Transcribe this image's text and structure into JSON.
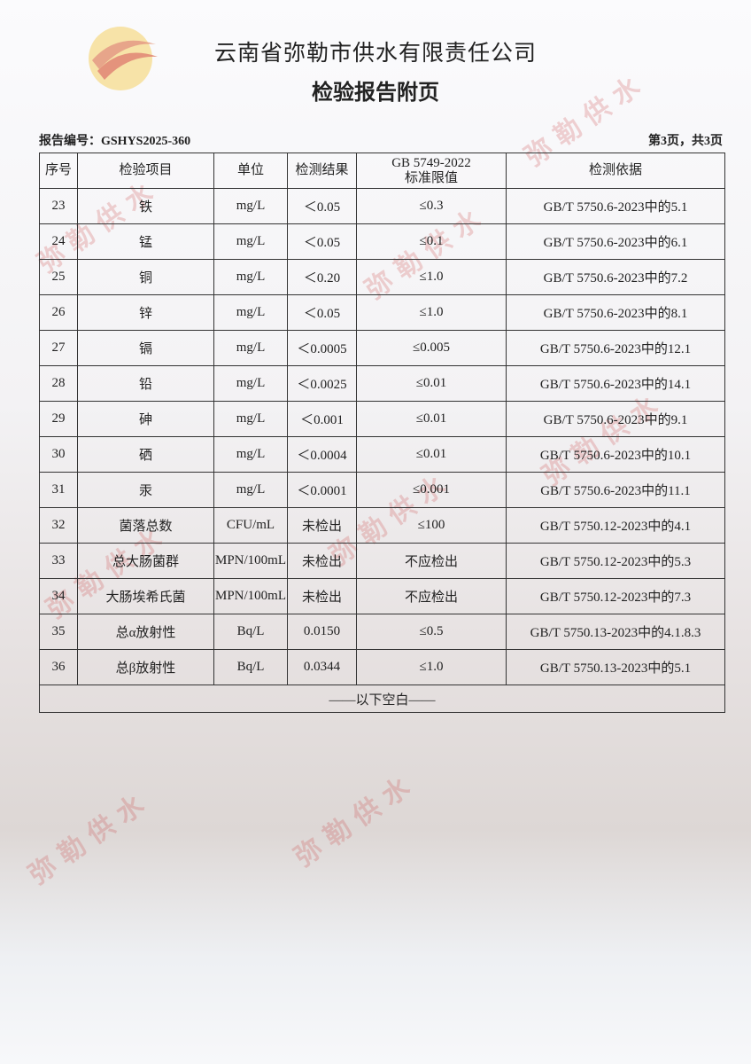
{
  "header": {
    "title": "云南省弥勒市供水有限责任公司",
    "subtitle": "检验报告附页",
    "report_no": "报告编号：GSHYS2025-360",
    "page": "第3页，共3页"
  },
  "watermark": "弥勒供水",
  "table": {
    "columns": [
      "序号",
      "检验项目",
      "单位",
      "检测结果",
      [
        "GB 5749-2022",
        "标准限值"
      ],
      "检测依据"
    ],
    "rows": [
      [
        "23",
        "铁",
        "mg/L",
        "＜0.05",
        "≤0.3",
        "GB/T 5750.6-2023中的5.1"
      ],
      [
        "24",
        "锰",
        "mg/L",
        "＜0.05",
        "≤0.1",
        "GB/T 5750.6-2023中的6.1"
      ],
      [
        "25",
        "铜",
        "mg/L",
        "＜0.20",
        "≤1.0",
        "GB/T 5750.6-2023中的7.2"
      ],
      [
        "26",
        "锌",
        "mg/L",
        "＜0.05",
        "≤1.0",
        "GB/T 5750.6-2023中的8.1"
      ],
      [
        "27",
        "镉",
        "mg/L",
        "＜0.0005",
        "≤0.005",
        "GB/T 5750.6-2023中的12.1"
      ],
      [
        "28",
        "铅",
        "mg/L",
        "＜0.0025",
        "≤0.01",
        "GB/T 5750.6-2023中的14.1"
      ],
      [
        "29",
        "砷",
        "mg/L",
        "＜0.001",
        "≤0.01",
        "GB/T 5750.6-2023中的9.1"
      ],
      [
        "30",
        "硒",
        "mg/L",
        "＜0.0004",
        "≤0.01",
        "GB/T 5750.6-2023中的10.1"
      ],
      [
        "31",
        "汞",
        "mg/L",
        "＜0.0001",
        "≤0.001",
        "GB/T 5750.6-2023中的11.1"
      ],
      [
        "32",
        "菌落总数",
        "CFU/mL",
        "未检出",
        "≤100",
        "GB/T 5750.12-2023中的4.1"
      ],
      [
        "33",
        "总大肠菌群",
        "MPN/100mL",
        "未检出",
        "不应检出",
        "GB/T 5750.12-2023中的5.3"
      ],
      [
        "34",
        "大肠埃希氏菌",
        "MPN/100mL",
        "未检出",
        "不应检出",
        "GB/T 5750.12-2023中的7.3"
      ],
      [
        "35",
        "总α放射性",
        "Bq/L",
        "0.0150",
        "≤0.5",
        "GB/T 5750.13-2023中的4.1.8.3"
      ],
      [
        "36",
        "总β放射性",
        "Bq/L",
        "0.0344",
        "≤1.0",
        "GB/T 5750.13-2023中的5.1"
      ]
    ],
    "footer": "——以下空白——"
  }
}
